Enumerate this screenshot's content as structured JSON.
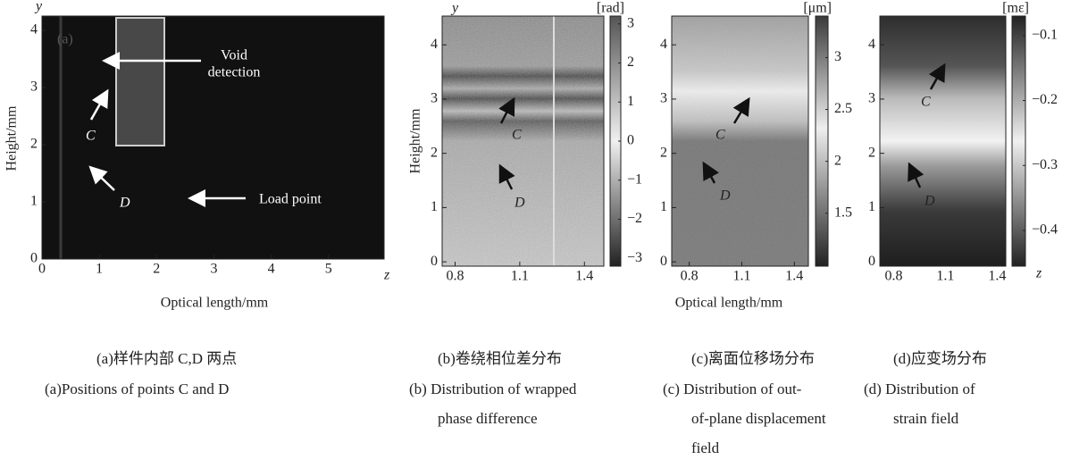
{
  "panels": [
    {
      "panel_label": "(a)",
      "y_var": "y",
      "x_var": "z",
      "y_axis_label": "Height/mm",
      "x_axis_label": "Optical length/mm",
      "xlim": [
        0,
        5.97
      ],
      "ylim": [
        0,
        4.25
      ],
      "xticks": [
        0,
        1,
        2,
        3,
        4,
        5
      ],
      "yticks": [
        0,
        1,
        2,
        3,
        4
      ],
      "annotations": {
        "point_c": "C",
        "point_d": "D",
        "void_detection": [
          "Void",
          "detection"
        ],
        "load_point": "Load point"
      },
      "caption_zh": "(a)样件内部 C,D 两点",
      "caption_en": [
        "(a)Positions of points C and D"
      ]
    },
    {
      "y_var": "y",
      "y_axis_label": "Height/mm",
      "xlim": [
        0.74,
        1.49
      ],
      "ylim": [
        -0.08,
        4.53
      ],
      "xticks": [
        0.8,
        1.1,
        1.4
      ],
      "yticks": [
        0,
        1,
        2,
        3,
        4
      ],
      "colorbar": {
        "unit": "[rad]",
        "lim": [
          -3.2,
          3.2
        ],
        "ticks": [
          {
            "value": -3,
            "label": "−3"
          },
          {
            "value": -2,
            "label": "−2"
          },
          {
            "value": -1,
            "label": "−1"
          },
          0,
          1,
          2,
          3
        ]
      },
      "annotations": {
        "point_c": "C",
        "point_d": "D"
      },
      "caption_zh": "(b)卷绕相位差分布",
      "caption_en": [
        "(b) Distribution of wrapped",
        "phase difference"
      ]
    },
    {
      "x_axis_label": "Optical length/mm",
      "xlim": [
        0.7,
        1.48
      ],
      "ylim": [
        -0.08,
        4.53
      ],
      "xticks": [
        0.8,
        1.1,
        1.4
      ],
      "yticks": [
        0,
        1,
        2,
        3,
        4
      ],
      "colorbar": {
        "unit": "[μm]",
        "lim": [
          0.99,
          3.4
        ],
        "ticks": [
          1.5,
          2,
          2.5,
          3
        ]
      },
      "annotations": {
        "point_c": "C",
        "point_d": "D"
      },
      "caption_zh": "(c)离面位移场分布",
      "caption_en": [
        "(c) Distribution of out-",
        "of-plane displacement",
        "field"
      ]
    },
    {
      "x_var": "z",
      "xlim": [
        0.72,
        1.45
      ],
      "ylim": [
        -0.08,
        4.53
      ],
      "xticks": [
        0.8,
        1.1,
        1.4
      ],
      "yticks": [
        0,
        1,
        2,
        3,
        4
      ],
      "colorbar": {
        "unit": "[mε]",
        "lim": [
          -0.455,
          -0.07
        ],
        "ticks": [
          {
            "value": -0.4,
            "label": "−0.4"
          },
          {
            "value": -0.3,
            "label": "−0.3"
          },
          {
            "value": -0.2,
            "label": "−0.2"
          },
          {
            "value": -0.1,
            "label": "−0.1"
          }
        ]
      },
      "annotations": {
        "point_c": "C",
        "point_d": "D"
      },
      "caption_zh": "(d)应变场分布",
      "caption_en": [
        "(d) Distribution of",
        "strain field"
      ]
    }
  ]
}
